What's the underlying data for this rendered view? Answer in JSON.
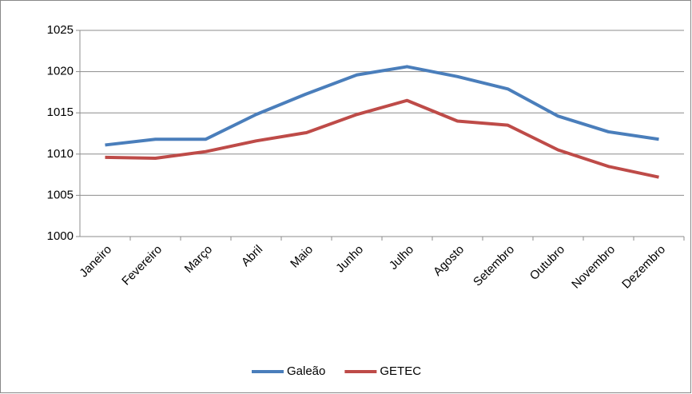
{
  "chart_data": {
    "type": "line",
    "categories": [
      "Janeiro",
      "Fevereiro",
      "Março",
      "Abril",
      "Maio",
      "Junho",
      "Julho",
      "Agosto",
      "Setembro",
      "Outubro",
      "Novembro",
      "Dezembro"
    ],
    "series": [
      {
        "name": "Galeão",
        "color": "#4a7ebb",
        "values": [
          1011.1,
          1011.8,
          1011.8,
          1014.8,
          1017.3,
          1019.6,
          1020.6,
          1019.4,
          1017.9,
          1014.6,
          1012.7,
          1011.8
        ]
      },
      {
        "name": "GETEC",
        "color": "#be4b48",
        "values": [
          1009.6,
          1009.5,
          1010.3,
          1011.6,
          1012.6,
          1014.8,
          1016.5,
          1014.0,
          1013.5,
          1010.5,
          1008.5,
          1007.2
        ]
      }
    ],
    "ylim": [
      1000,
      1025
    ],
    "yticks": [
      1000,
      1005,
      1010,
      1015,
      1020,
      1025
    ],
    "grid": true,
    "legend": "bottom"
  }
}
